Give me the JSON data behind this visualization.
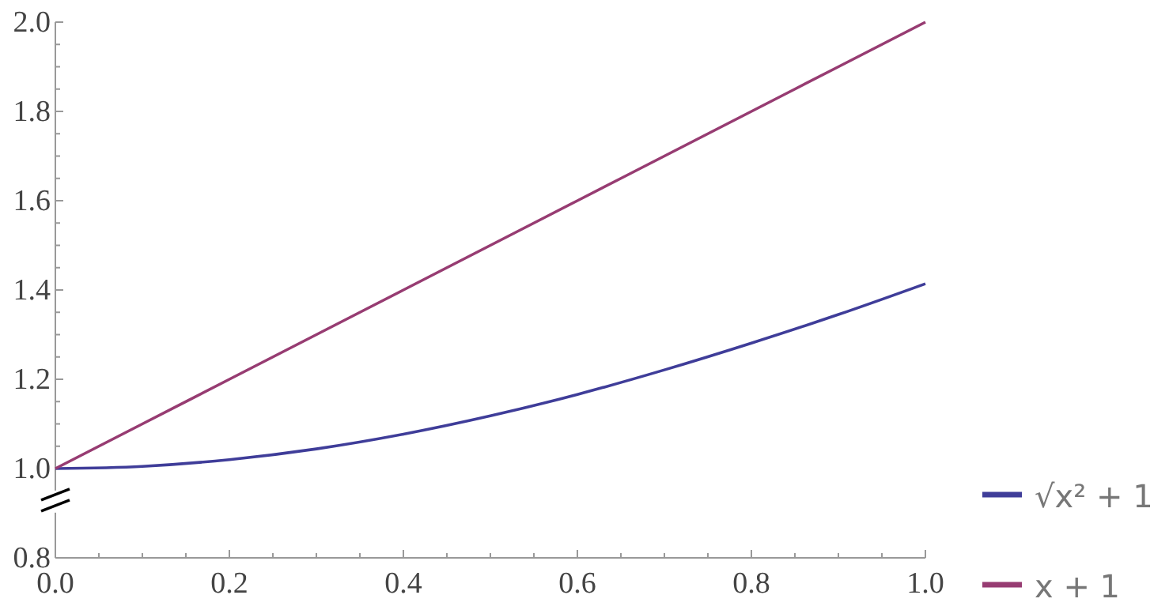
{
  "chart_data": {
    "type": "line",
    "legend": "right",
    "line_style": "solid",
    "marker": "none",
    "xlim": [
      0,
      1
    ],
    "ylim": [
      0.8,
      2.0
    ],
    "xticks": [
      {
        "value": 0,
        "label": "0.0"
      },
      {
        "value": 0.05,
        "label": null
      },
      {
        "value": 0.1,
        "label": null
      },
      {
        "value": 0.15,
        "label": null
      },
      {
        "value": 0.2,
        "label": "0.2"
      },
      {
        "value": 0.25,
        "label": null
      },
      {
        "value": 0.3,
        "label": null
      },
      {
        "value": 0.35,
        "label": null
      },
      {
        "value": 0.4,
        "label": "0.4"
      },
      {
        "value": 0.45,
        "label": null
      },
      {
        "value": 0.5,
        "label": null
      },
      {
        "value": 0.55,
        "label": null
      },
      {
        "value": 0.6,
        "label": "0.6"
      },
      {
        "value": 0.65,
        "label": null
      },
      {
        "value": 0.7,
        "label": null
      },
      {
        "value": 0.75,
        "label": null
      },
      {
        "value": 0.8,
        "label": "0.8"
      },
      {
        "value": 0.85,
        "label": null
      },
      {
        "value": 0.9,
        "label": null
      },
      {
        "value": 0.95,
        "label": null
      },
      {
        "value": 1,
        "label": "1.0"
      }
    ],
    "yticks": [
      {
        "value": 0.8,
        "label": "0.8"
      },
      {
        "value": 1,
        "label": "1.0"
      },
      {
        "value": 1.05,
        "label": null
      },
      {
        "value": 1.1,
        "label": null
      },
      {
        "value": 1.15,
        "label": null
      },
      {
        "value": 1.2,
        "label": "1.2"
      },
      {
        "value": 1.25,
        "label": null
      },
      {
        "value": 1.3,
        "label": null
      },
      {
        "value": 1.35,
        "label": null
      },
      {
        "value": 1.4,
        "label": "1.4"
      },
      {
        "value": 1.45,
        "label": null
      },
      {
        "value": 1.5,
        "label": null
      },
      {
        "value": 1.55,
        "label": null
      },
      {
        "value": 1.6,
        "label": "1.6"
      },
      {
        "value": 1.65,
        "label": null
      },
      {
        "value": 1.7,
        "label": null
      },
      {
        "value": 1.75,
        "label": null
      },
      {
        "value": 1.8,
        "label": "1.8"
      },
      {
        "value": 1.85,
        "label": null
      },
      {
        "value": 1.9,
        "label": null
      },
      {
        "value": 1.95,
        "label": null
      },
      {
        "value": 2.0,
        "label": "2.0"
      }
    ],
    "x": [
      0,
      0.1,
      0.2,
      0.3,
      0.4,
      0.5,
      0.6,
      0.7,
      0.8,
      0.9,
      1.0
    ],
    "series": [
      {
        "name": "√x² + 1",
        "color": "#3f3d99",
        "values": [
          1.0,
          1.005,
          1.02,
          1.044,
          1.077,
          1.118,
          1.166,
          1.221,
          1.281,
          1.345,
          1.414
        ]
      },
      {
        "name": "x + 1",
        "color": "#973c72",
        "values": [
          1.0,
          1.1,
          1.2,
          1.3,
          1.4,
          1.5,
          1.6,
          1.7,
          1.8,
          1.9,
          2.0
        ]
      }
    ]
  }
}
